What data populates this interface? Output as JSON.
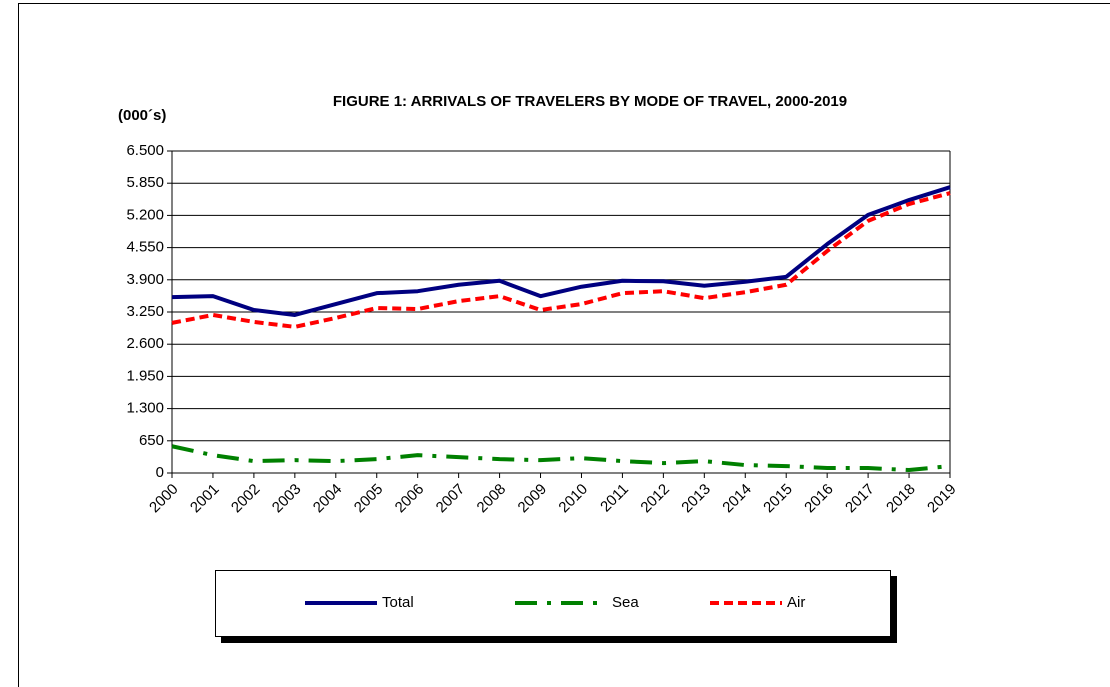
{
  "chart_data": {
    "type": "line",
    "title": "FIGURE 1:  ARRIVALS OF TRAVELERS BY MODE OF TRAVEL, 2000-2019",
    "y_label": "(000´s)",
    "categories": [
      "2000",
      "2001",
      "2002",
      "2003",
      "2004",
      "2005",
      "2006",
      "2007",
      "2008",
      "2009",
      "2010",
      "2011",
      "2012",
      "2013",
      "2014",
      "2015",
      "2016",
      "2017",
      "2018",
      "2019"
    ],
    "series": [
      {
        "name": "Total",
        "color": "#000080",
        "values": [
          3550,
          3570,
          3290,
          3190,
          3410,
          3630,
          3670,
          3800,
          3880,
          3570,
          3760,
          3880,
          3870,
          3780,
          3860,
          3960,
          4620,
          5210,
          5510,
          5770
        ]
      },
      {
        "name": "Sea",
        "color": "#008000",
        "values": [
          540,
          360,
          240,
          260,
          240,
          280,
          360,
          320,
          280,
          260,
          300,
          240,
          200,
          240,
          160,
          140,
          100,
          100,
          60,
          140
        ]
      },
      {
        "name": "Air",
        "color": "#ff0000",
        "values": [
          3030,
          3190,
          3050,
          2950,
          3130,
          3330,
          3310,
          3470,
          3570,
          3290,
          3410,
          3630,
          3670,
          3530,
          3650,
          3800,
          4480,
          5090,
          5430,
          5650
        ]
      }
    ],
    "ylim": [
      0,
      6500
    ],
    "yticks": [
      0,
      650,
      {
        "value": 1300,
        "label": "1.300"
      },
      {
        "value": 1950,
        "label": "1.950"
      },
      {
        "value": 2600,
        "label": "2.600"
      },
      {
        "value": 3250,
        "label": "3.250"
      },
      {
        "value": 3900,
        "label": "3.900"
      },
      {
        "value": 4550,
        "label": "4.550"
      },
      {
        "value": 5200,
        "label": "5.200"
      },
      {
        "value": 5850,
        "label": "5.850"
      },
      {
        "value": 6500,
        "label": "6.500"
      }
    ],
    "grid": true,
    "legend": "bottom"
  }
}
